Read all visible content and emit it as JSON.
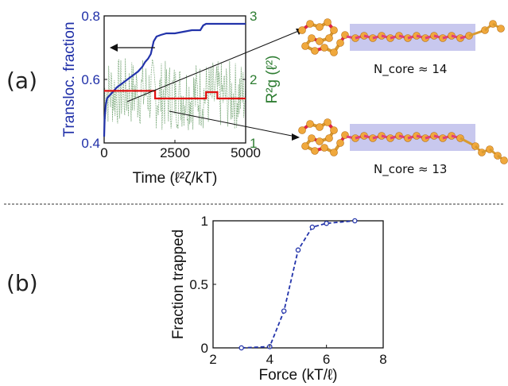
{
  "panels": {
    "a_label": "(a)",
    "b_label": "(b)"
  },
  "colors": {
    "blue": "#2233aa",
    "green": "#2e7d32",
    "red": "#e01010",
    "noise": "#7aa87a"
  },
  "chart_data": [
    {
      "type": "line",
      "panel": "(a)",
      "xlabel": "Time (ℓ²ζ/kT)",
      "ylabel_left": "Transloc. fraction",
      "ylabel_right": "R²g (ℓ²)",
      "xlim": [
        0,
        5000
      ],
      "ylim_left": [
        0.4,
        0.8
      ],
      "ylim_right": [
        1,
        3
      ],
      "xticks": [
        "0",
        "2500",
        "5000"
      ],
      "yticks_left": [
        "0.4",
        "0.6",
        "0.8"
      ],
      "yticks_right": [
        "1",
        "2",
        "3"
      ],
      "series": [
        {
          "axis": "left",
          "color": "#2233aa",
          "x": [
            0,
            20,
            60,
            100,
            150,
            200,
            300,
            450,
            600,
            750,
            900,
            1050,
            1200,
            1350,
            1450,
            1550,
            1650,
            1750,
            1850,
            2000,
            2200,
            2500,
            2800,
            3100,
            3400,
            3500,
            3600,
            3700,
            4000,
            4500,
            5000
          ],
          "values": [
            0.42,
            0.48,
            0.52,
            0.54,
            0.545,
            0.55,
            0.56,
            0.575,
            0.585,
            0.595,
            0.605,
            0.615,
            0.625,
            0.64,
            0.655,
            0.665,
            0.68,
            0.72,
            0.735,
            0.74,
            0.745,
            0.745,
            0.75,
            0.755,
            0.755,
            0.77,
            0.775,
            0.775,
            0.775,
            0.775,
            0.775
          ]
        },
        {
          "axis": "right",
          "color": "#e01010",
          "x": [
            0,
            150,
            1800,
            1800,
            3600,
            3600,
            4000,
            4000,
            5000
          ],
          "values": [
            1.82,
            1.82,
            1.82,
            1.7,
            1.7,
            1.8,
            1.8,
            1.7,
            1.7
          ]
        }
      ],
      "annotations": [
        "N_core ≈ 14",
        "N_core ≈ 13"
      ]
    },
    {
      "type": "line",
      "panel": "(b)",
      "xlabel": "Force (kT/ℓ)",
      "ylabel": "Fraction trapped",
      "xlim": [
        2,
        8
      ],
      "ylim": [
        0,
        1
      ],
      "xticks": [
        "2",
        "4",
        "6",
        "8"
      ],
      "yticks": [
        "0",
        "0.5",
        "1"
      ],
      "series": [
        {
          "color": "#2233aa",
          "x": [
            3,
            4,
            4.5,
            5,
            5.5,
            6,
            7
          ],
          "values": [
            0.0,
            0.01,
            0.29,
            0.77,
            0.95,
            0.98,
            1.0
          ]
        }
      ]
    }
  ]
}
